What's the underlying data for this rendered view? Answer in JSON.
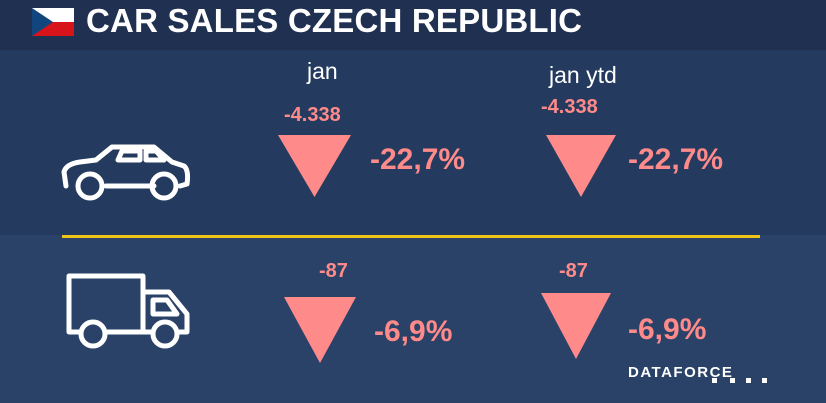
{
  "header": {
    "title": "CAR SALES CZECH REPUBLIC",
    "flag_icon": "czech-flag-icon"
  },
  "columns": {
    "month": "jan",
    "ytd": "jan ytd"
  },
  "rows": {
    "cars": {
      "icon": "car-icon",
      "jan_abs": "-4.338",
      "jan_pct": "-22,7%",
      "ytd_abs": "-4.338",
      "ytd_pct": "-22,7%"
    },
    "trucks": {
      "icon": "truck-icon",
      "jan_abs": "-87",
      "jan_pct": "-6,9%",
      "ytd_abs": "-87",
      "ytd_pct": "-6,9%"
    }
  },
  "footer": {
    "logo_text": "DATAFORCE"
  },
  "colors": {
    "background": "#1f3050",
    "negative": "#ff8a8a",
    "divider": "#f0c419"
  }
}
